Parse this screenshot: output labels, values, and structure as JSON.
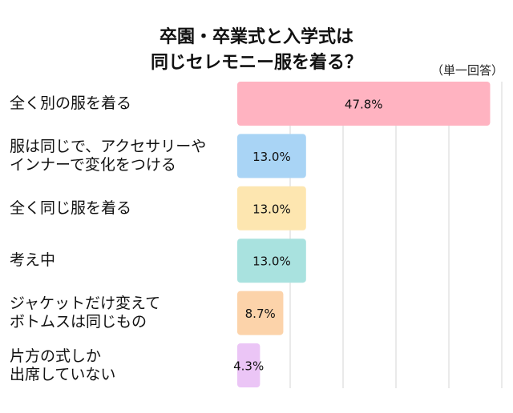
{
  "chart_data": {
    "type": "bar",
    "orientation": "horizontal",
    "title": [
      "卒園・卒業式と入学式は",
      "同じセレモニー服を着る？"
    ],
    "note": "（単一回答）",
    "categories": [
      [
        "全く別の服を着る"
      ],
      [
        "服は同じで、アクセサリーや",
        "インナーで変化をつける"
      ],
      [
        "全く同じ服を着る"
      ],
      [
        "考え中"
      ],
      [
        "ジャケットだけ変えて",
        "ボトムスは同じもの"
      ],
      [
        "片方の式しか",
        "出席していない"
      ]
    ],
    "values": [
      47.8,
      13.0,
      13.0,
      13.0,
      8.7,
      4.3
    ],
    "labels": [
      "47.8%",
      "13.0%",
      "13.0%",
      "13.0%",
      "8.7%",
      "4.3%"
    ],
    "colors": [
      "#ffb3c1",
      "#a9d4f5",
      "#fde6b0",
      "#a9e2df",
      "#fcd3aa",
      "#ebc5f6"
    ],
    "xlim": [
      0,
      50
    ],
    "grid": true,
    "gridlines": [
      10,
      20,
      30,
      40,
      50
    ]
  }
}
